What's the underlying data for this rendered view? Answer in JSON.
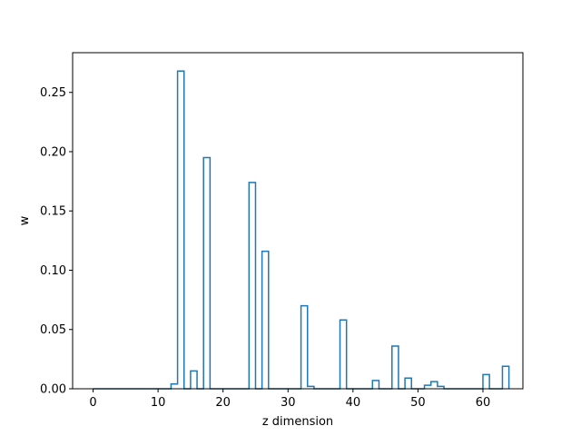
{
  "chart_data": {
    "type": "bar",
    "style": "step-histogram",
    "title": "",
    "xlabel": "z dimension",
    "ylabel": "w",
    "xlim": [
      -3.15,
      66.15
    ],
    "ylim": [
      0,
      0.2835
    ],
    "grid": false,
    "legend": "none",
    "color": "#1f77b4",
    "xticks": [
      0,
      10,
      20,
      30,
      40,
      50,
      60
    ],
    "xtick_labels": [
      "0",
      "10",
      "20",
      "30",
      "40",
      "50",
      "60"
    ],
    "yticks": [
      0.0,
      0.05,
      0.1,
      0.15,
      0.2,
      0.25
    ],
    "ytick_labels": [
      "0.00",
      "0.05",
      "0.10",
      "0.15",
      "0.20",
      "0.25"
    ],
    "bin_edges_start": 0,
    "bin_width": 1,
    "values": [
      0,
      0,
      0,
      0,
      0,
      0,
      0,
      0,
      0,
      0,
      0,
      0,
      0.004,
      0.268,
      0,
      0.015,
      0,
      0.195,
      0,
      0,
      0,
      0,
      0,
      0,
      0.174,
      0,
      0.116,
      0,
      0,
      0,
      0,
      0,
      0.07,
      0.002,
      0,
      0,
      0,
      0,
      0.058,
      0,
      0,
      0,
      0,
      0.007,
      0,
      0,
      0.036,
      0,
      0.009,
      0,
      0,
      0.003,
      0.006,
      0.002,
      0,
      0,
      0,
      0,
      0,
      0,
      0.012,
      0,
      0,
      0.019
    ]
  }
}
